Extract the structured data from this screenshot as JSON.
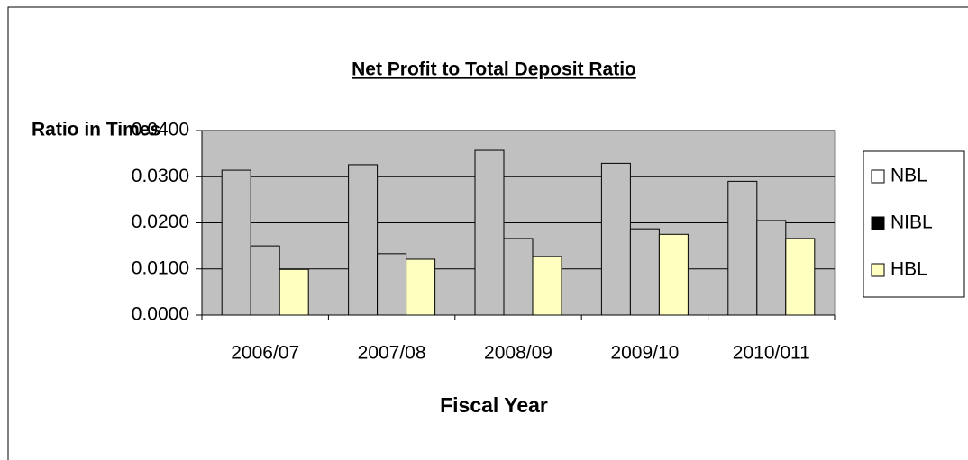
{
  "chart_data": {
    "type": "bar",
    "title": "Net Profit to Total Deposit Ratio",
    "y_label": "Ratio in Times",
    "x_label": "Fiscal Year",
    "categories": [
      "2006/07",
      "2007/08",
      "2008/09",
      "2009/10",
      "2010/011"
    ],
    "series": [
      {
        "name": "NBL",
        "color": "#c0c0c0",
        "legend_color": "#ffffff",
        "values": [
          0.0314,
          0.0326,
          0.0357,
          0.0329,
          0.029
        ]
      },
      {
        "name": "NIBL",
        "color": "#c0c0c0",
        "legend_color": "#000000",
        "values": [
          0.015,
          0.0133,
          0.0166,
          0.0187,
          0.0205
        ]
      },
      {
        "name": "HBL",
        "color": "#ffffc0",
        "legend_color": "#ffffc0",
        "values": [
          0.0099,
          0.0121,
          0.0127,
          0.0175,
          0.0166
        ]
      }
    ],
    "ylim": [
      0,
      0.04
    ],
    "yticks": [
      {
        "value": 0,
        "label": "0.0000"
      },
      {
        "value": 0.01,
        "label": "0.0100"
      },
      {
        "value": 0.02,
        "label": "0.0200"
      },
      {
        "value": 0.03,
        "label": "0.0300"
      },
      {
        "value": 0.04,
        "label": "0.0400"
      }
    ],
    "grid": true,
    "legend": "right"
  }
}
